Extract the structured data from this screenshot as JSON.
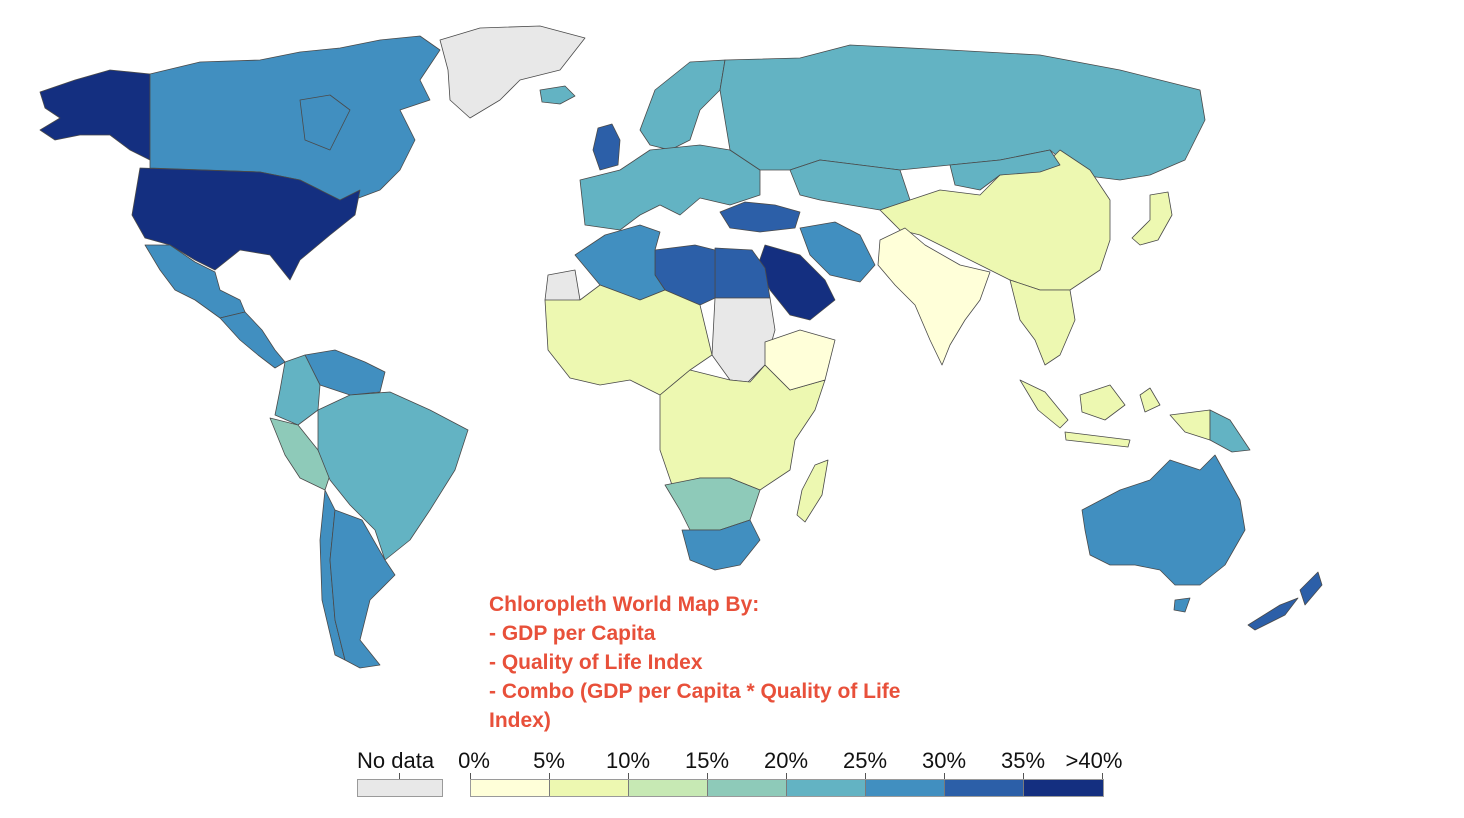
{
  "annotation": {
    "lines": [
      "Chloropleth World Map By:",
      "- GDP per Capita",
      "- Quality of Life Index",
      "- Combo (GDP per Capita * Quality of Life",
      "Index)"
    ],
    "color": "#e8503a"
  },
  "legend": {
    "no_data_label": "No data",
    "no_data_color": "#e8e8e8",
    "tick_labels": [
      "0%",
      "5%",
      "10%",
      "15%",
      "20%",
      "25%",
      "30%",
      "35%",
      ">40%"
    ],
    "colors": [
      "#ffffd9",
      "#edf8b1",
      "#c7e9b4",
      "#8ecab9",
      "#63b3c3",
      "#418fc0",
      "#2c5fa8",
      "#142f80"
    ]
  },
  "map": {
    "ocean_color": "#ffffff",
    "border_color": "#4a4a4a",
    "countries": [
      {
        "name": "Alaska",
        "color": "#142f80"
      },
      {
        "name": "Canada",
        "color": "#418fc0"
      },
      {
        "name": "Greenland",
        "color": "#e8e8e8"
      },
      {
        "name": "United States",
        "color": "#142f80"
      },
      {
        "name": "Mexico",
        "color": "#418fc0"
      },
      {
        "name": "Central America",
        "color": "#418fc0"
      },
      {
        "name": "Venezuela",
        "color": "#418fc0"
      },
      {
        "name": "Colombia",
        "color": "#63b3c3"
      },
      {
        "name": "Peru",
        "color": "#8ecab9"
      },
      {
        "name": "Brazil",
        "color": "#63b3c3"
      },
      {
        "name": "Chile",
        "color": "#418fc0"
      },
      {
        "name": "Argentina",
        "color": "#418fc0"
      },
      {
        "name": "Iceland",
        "color": "#63b3c3"
      },
      {
        "name": "United Kingdom",
        "color": "#2c5fa8"
      },
      {
        "name": "Scandinavia",
        "color": "#63b3c3"
      },
      {
        "name": "Western Europe",
        "color": "#63b3c3"
      },
      {
        "name": "Russia",
        "color": "#63b3c3"
      },
      {
        "name": "Kazakhstan",
        "color": "#63b3c3"
      },
      {
        "name": "Turkey",
        "color": "#2c5fa8"
      },
      {
        "name": "Iran",
        "color": "#418fc0"
      },
      {
        "name": "Saudi Arabia",
        "color": "#142f80"
      },
      {
        "name": "Egypt",
        "color": "#2c5fa8"
      },
      {
        "name": "Libya",
        "color": "#2c5fa8"
      },
      {
        "name": "Algeria",
        "color": "#418fc0"
      },
      {
        "name": "Mauritania",
        "color": "#e8e8e8"
      },
      {
        "name": "Sudan",
        "color": "#e8e8e8"
      },
      {
        "name": "Sahel & West Africa",
        "color": "#edf8b1"
      },
      {
        "name": "Central & East Africa",
        "color": "#edf8b1"
      },
      {
        "name": "Ethiopia",
        "color": "#ffffd9"
      },
      {
        "name": "Southern Africa",
        "color": "#8ecab9"
      },
      {
        "name": "South Africa",
        "color": "#418fc0"
      },
      {
        "name": "Madagascar",
        "color": "#edf8b1"
      },
      {
        "name": "China",
        "color": "#edf8b1"
      },
      {
        "name": "Mongolia",
        "color": "#63b3c3"
      },
      {
        "name": "India",
        "color": "#ffffd9"
      },
      {
        "name": "Southeast Asia",
        "color": "#edf8b1"
      },
      {
        "name": "Japan",
        "color": "#edf8b1"
      },
      {
        "name": "Indonesia",
        "color": "#edf8b1"
      },
      {
        "name": "Papua New Guinea",
        "color": "#63b3c3"
      },
      {
        "name": "Australia",
        "color": "#418fc0"
      },
      {
        "name": "New Zealand",
        "color": "#2c5fa8"
      }
    ]
  }
}
